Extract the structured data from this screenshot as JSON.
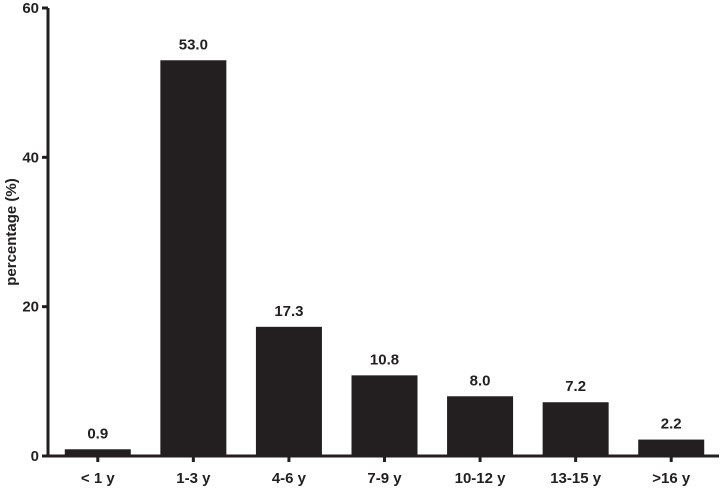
{
  "chart_data": {
    "type": "bar",
    "title": "",
    "xlabel": "",
    "ylabel": "percentage (%)",
    "categories": [
      "< 1 y",
      "1-3 y",
      "4-6 y",
      "7-9 y",
      "10-12 y",
      "13-15 y",
      ">16 y"
    ],
    "values": [
      0.9,
      53.0,
      17.3,
      10.8,
      8.0,
      7.2,
      2.2
    ],
    "data_labels": [
      "0.9",
      "53.0",
      "17.3",
      "10.8",
      "8.0",
      "7.2",
      "2.2"
    ],
    "ylim": [
      0,
      60
    ],
    "yticks": [
      0,
      20,
      40,
      60
    ],
    "ytick_labels": [
      "0",
      "20",
      "40",
      "60"
    ],
    "grid": false,
    "legend": "none",
    "colors": {
      "bar": "#231f20",
      "axis": "#231f20",
      "text": "#231f20"
    }
  }
}
